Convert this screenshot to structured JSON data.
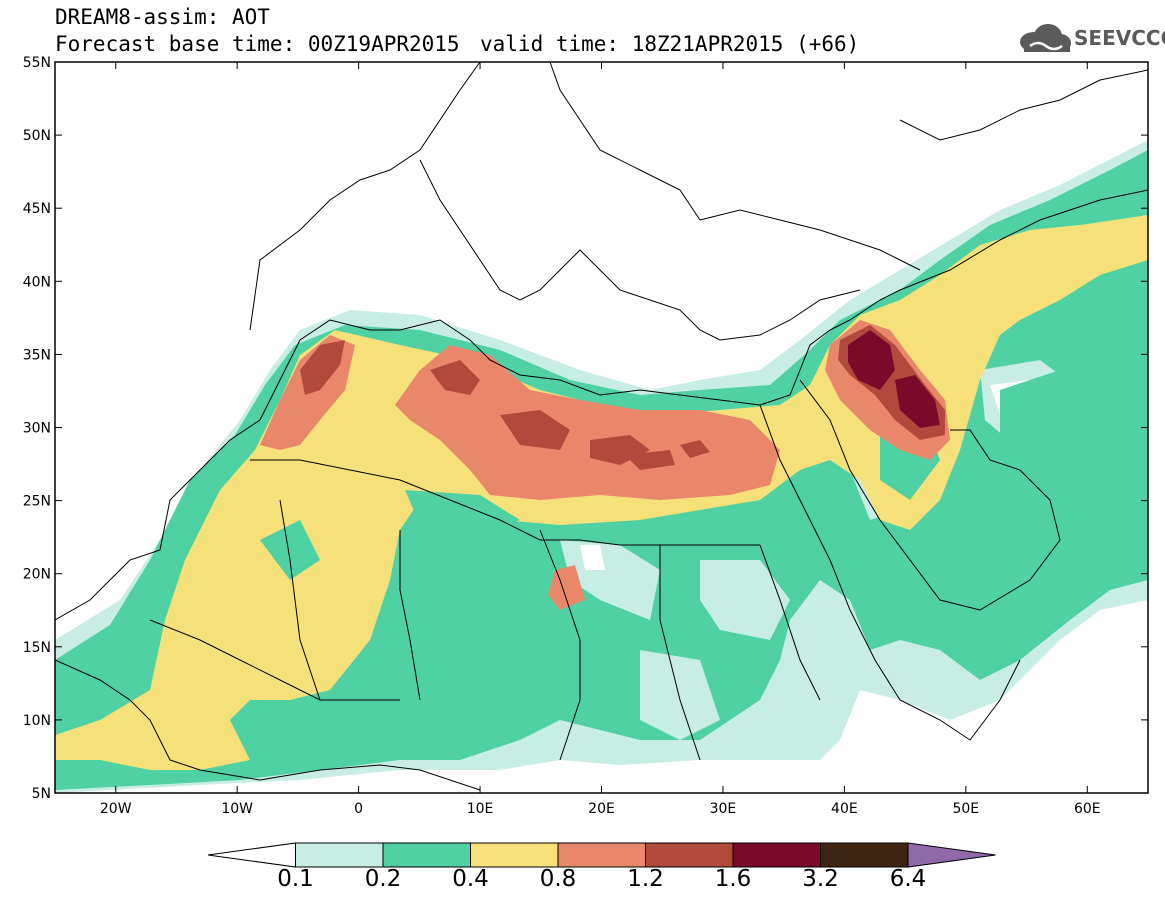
{
  "title": {
    "line1": "DREAM8-assim: AOT",
    "line2": "Forecast base time: 00Z19APR2015",
    "valid": "valid time: 18Z21APR2015 (+66)"
  },
  "logo": {
    "text": "SEEVCCC",
    "icon": "cloud-icon"
  },
  "axes": {
    "lon_range": [
      -25,
      65
    ],
    "lat_range": [
      5,
      55
    ],
    "lon_ticks": [
      {
        "value": -20,
        "label": "20W"
      },
      {
        "value": -10,
        "label": "10W"
      },
      {
        "value": 0,
        "label": "0"
      },
      {
        "value": 10,
        "label": "10E"
      },
      {
        "value": 20,
        "label": "20E"
      },
      {
        "value": 30,
        "label": "30E"
      },
      {
        "value": 40,
        "label": "40E"
      },
      {
        "value": 50,
        "label": "50E"
      },
      {
        "value": 60,
        "label": "60E"
      }
    ],
    "lat_ticks": [
      {
        "value": 5,
        "label": "5N"
      },
      {
        "value": 10,
        "label": "10N"
      },
      {
        "value": 15,
        "label": "15N"
      },
      {
        "value": 20,
        "label": "20N"
      },
      {
        "value": 25,
        "label": "25N"
      },
      {
        "value": 30,
        "label": "30N"
      },
      {
        "value": 35,
        "label": "35N"
      },
      {
        "value": 40,
        "label": "40N"
      },
      {
        "value": 45,
        "label": "45N"
      },
      {
        "value": 50,
        "label": "50N"
      },
      {
        "value": 55,
        "label": "55N"
      }
    ]
  },
  "colorbar": {
    "labels": [
      "0.1",
      "0.2",
      "0.4",
      "0.8",
      "1.2",
      "1.6",
      "3.2",
      "6.4"
    ],
    "colors": [
      "#ffffff",
      "#c7ede4",
      "#4fd1a3",
      "#f5e07a",
      "#e8876a",
      "#b04a3c",
      "#7a0a2a",
      "#3d2512",
      "#8e6aa8"
    ]
  },
  "colors": {
    "lv1": "#c7ede4",
    "lv2": "#4fd1a3",
    "lv3": "#f5e07a",
    "lv4": "#e8876a",
    "lv5": "#b04a3c",
    "lv6": "#7a0a2a",
    "lv7": "#3d2512"
  }
}
